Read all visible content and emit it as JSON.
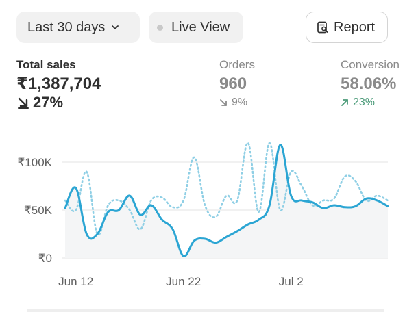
{
  "toolbar": {
    "date_range_label": "Last 30 days",
    "live_view_label": "Live View",
    "report_label": "Report"
  },
  "metrics": {
    "total_sales": {
      "label": "Total sales",
      "value": "₹1,387,704",
      "change": "27%",
      "direction": "down"
    },
    "orders": {
      "label": "Orders",
      "value": "960",
      "change": "9%",
      "direction": "down"
    },
    "conversion": {
      "label": "Conversion",
      "value": "58.06%",
      "change": "23%",
      "direction": "up"
    }
  },
  "colors": {
    "line_current": "#2ba5d3",
    "line_previous": "#8fcfe5",
    "area_fill": "#f4f5f6",
    "grid": "#e3e3e3",
    "up_green": "#4a9a78"
  },
  "chart_data": {
    "type": "line",
    "x": [
      "Jun 11",
      "Jun 12",
      "Jun 13",
      "Jun 14",
      "Jun 15",
      "Jun 16",
      "Jun 17",
      "Jun 18",
      "Jun 19",
      "Jun 20",
      "Jun 21",
      "Jun 22",
      "Jun 23",
      "Jun 24",
      "Jun 25",
      "Jun 26",
      "Jun 27",
      "Jun 28",
      "Jun 29",
      "Jun 30",
      "Jul 1",
      "Jul 2",
      "Jul 3",
      "Jul 4",
      "Jul 5",
      "Jul 6",
      "Jul 7",
      "Jul 8",
      "Jul 9",
      "Jul 10",
      "Jul 11"
    ],
    "x_tick_labels": [
      "Jun 12",
      "Jun 22",
      "Jul 2"
    ],
    "y_tick_labels": [
      "₹0",
      "₹50K",
      "₹100K"
    ],
    "ylim": [
      0,
      100000
    ],
    "series": [
      {
        "style": "solid",
        "values": [
          52000,
          73000,
          25000,
          25000,
          48000,
          50000,
          65000,
          45000,
          55000,
          40000,
          30000,
          2000,
          18000,
          20000,
          16000,
          22000,
          28000,
          35000,
          40000,
          55000,
          118000,
          65000,
          60000,
          58000,
          52000,
          55000,
          53000,
          54000,
          62000,
          60000,
          54000
        ]
      },
      {
        "style": "dotted",
        "values": [
          60000,
          50000,
          90000,
          25000,
          55000,
          60000,
          50000,
          30000,
          60000,
          63000,
          53000,
          60000,
          105000,
          55000,
          43000,
          65000,
          60000,
          120000,
          48000,
          120000,
          50000,
          90000,
          75000,
          55000,
          60000,
          62000,
          85000,
          80000,
          60000,
          65000,
          60000
        ]
      }
    ]
  }
}
